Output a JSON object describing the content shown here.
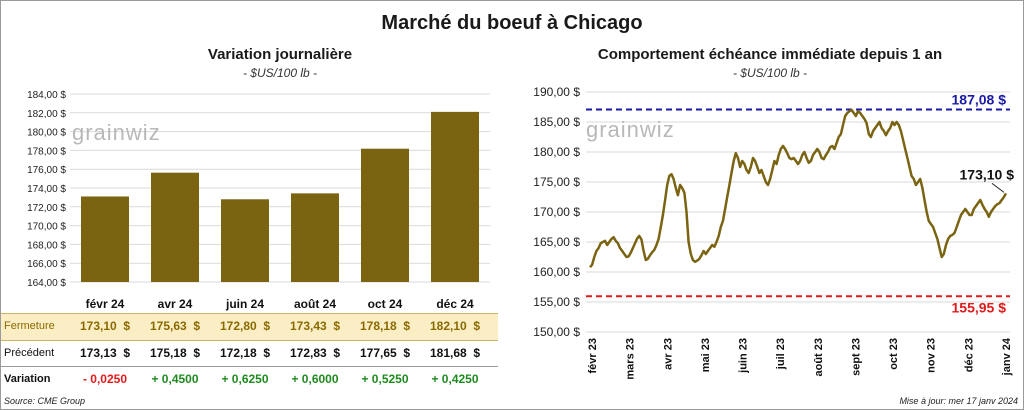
{
  "title": "Marché du boeuf à Chicago",
  "left_chart": {
    "title": "Variation  journalière",
    "subtitle": "- $US/100 lb -",
    "watermark": "grainwiz"
  },
  "right_chart": {
    "title": "Comportement  échéance immédiate depuis 1 an",
    "subtitle": "- $US/100 lb -",
    "watermark": "grainwiz",
    "upper_line_label": "187,08 $",
    "lower_line_label": "155,95 $",
    "last_label": "173,10 $"
  },
  "table": {
    "rows": [
      {
        "label": "Fermeture",
        "values": [
          "173,10  $",
          "175,63  $",
          "172,80  $",
          "173,43  $",
          "178,18  $",
          "182,10  $"
        ]
      },
      {
        "label": "Précédent",
        "values": [
          "173,13  $",
          "175,18  $",
          "172,18  $",
          "172,83  $",
          "177,65  $",
          "181,68  $"
        ]
      },
      {
        "label": "Variation",
        "values": [
          "- 0,0250",
          "+ 0,4500",
          "+ 0,6250",
          "+ 0,6000",
          "+ 0,5250",
          "+ 0,4250"
        ]
      }
    ]
  },
  "footer": {
    "source": "Source: CME Group",
    "updated": "Mise à jour: mer 17 janv 2024"
  },
  "colors": {
    "bar": "#7a6412",
    "line": "#7a6412",
    "upper_dash": "#1a1aa8",
    "lower_dash": "#e01b1b",
    "highlight_row": "#fbeec4",
    "negative": "#e01b1b",
    "positive": "#1f8a1f"
  },
  "chart_data": [
    {
      "type": "bar",
      "categories": [
        "févr 24",
        "avr 24",
        "juin 24",
        "août 24",
        "oct 24",
        "déc 24"
      ],
      "values": [
        173.1,
        175.63,
        172.8,
        173.43,
        178.18,
        182.1
      ],
      "title": "Variation  journalière",
      "subtitle": "- $US/100 lb -",
      "ylim": [
        164,
        184
      ],
      "yticks": [
        "164,00 $",
        "166,00 $",
        "168,00 $",
        "170,00 $",
        "172,00 $",
        "174,00 $",
        "176,00 $",
        "178,00 $",
        "180,00 $",
        "182,00 $",
        "184,00 $"
      ],
      "grid": true
    },
    {
      "type": "line",
      "title": "Comportement  échéance immédiate depuis 1 an",
      "subtitle": "- $US/100 lb -",
      "x_start": "févr 23",
      "x_end": "janv 24",
      "xticks": [
        "févr 23",
        "mars 23",
        "avr 23",
        "mai 23",
        "juin 23",
        "juil 23",
        "août 23",
        "sept 23",
        "oct 23",
        "nov 23",
        "déc 23",
        "janv 24"
      ],
      "ylim": [
        150,
        190
      ],
      "yticks": [
        "150,00 $",
        "155,00 $",
        "160,00 $",
        "165,00 $",
        "170,00 $",
        "175,00 $",
        "180,00 $",
        "185,00 $",
        "190,00 $"
      ],
      "grid": true,
      "reference_lines": [
        {
          "value": 187.08,
          "label": "187,08 $",
          "style": "dashed"
        },
        {
          "value": 155.95,
          "label": "155,95 $",
          "style": "dashed"
        }
      ],
      "values": [
        160.8,
        161.2,
        162.5,
        163.5,
        164.0,
        164.8,
        165.0,
        165.2,
        164.5,
        165.0,
        165.5,
        165.8,
        165.2,
        164.8,
        164.0,
        163.5,
        163.0,
        162.5,
        162.6,
        163.2,
        164.0,
        164.8,
        165.6,
        166.0,
        165.4,
        163.5,
        162.0,
        162.2,
        162.8,
        163.3,
        163.7,
        164.5,
        165.5,
        167.5,
        169.5,
        172.0,
        174.5,
        176.0,
        176.3,
        175.5,
        174.0,
        172.8,
        174.5,
        174.0,
        173.2,
        170.0,
        165.0,
        163.0,
        162.0,
        161.7,
        161.9,
        162.2,
        162.8,
        163.5,
        163.0,
        163.5,
        164.0,
        164.5,
        164.2,
        165.0,
        166.0,
        167.5,
        168.5,
        170.5,
        172.5,
        174.5,
        176.5,
        178.5,
        179.8,
        179.0,
        177.5,
        178.5,
        178.0,
        177.0,
        176.5,
        177.5,
        179.0,
        178.5,
        177.5,
        176.5,
        177.0,
        176.0,
        175.0,
        174.5,
        175.5,
        177.0,
        178.5,
        178.0,
        179.5,
        180.5,
        181.0,
        180.5,
        179.8,
        179.0,
        178.8,
        179.0,
        178.5,
        178.0,
        178.5,
        179.5,
        180.0,
        179.0,
        178.2,
        178.5,
        179.5,
        180.0,
        180.5,
        180.0,
        179.0,
        178.8,
        179.5,
        180.0,
        180.8,
        181.0,
        180.5,
        181.5,
        182.5,
        183.0,
        184.5,
        186.0,
        186.5,
        186.8,
        187.0,
        186.5,
        186.0,
        186.8,
        186.5,
        186.0,
        185.5,
        184.8,
        183.0,
        182.5,
        183.5,
        184.0,
        184.5,
        185.0,
        184.0,
        183.5,
        182.8,
        183.5,
        184.0,
        185.0,
        184.5,
        185.0,
        184.5,
        183.5,
        182.0,
        180.5,
        179.0,
        177.5,
        176.0,
        175.5,
        174.5,
        175.0,
        175.5,
        174.0,
        172.0,
        170.0,
        168.5,
        168.0,
        167.5,
        166.5,
        165.5,
        164.0,
        162.5,
        163.0,
        164.5,
        165.5,
        166.0,
        166.2,
        166.5,
        167.5,
        168.5,
        169.5,
        170.0,
        170.5,
        170.0,
        169.5,
        169.5,
        170.5,
        171.0,
        171.5,
        172.0,
        171.2,
        170.5,
        170.0,
        169.2,
        170.0,
        170.5,
        171.0,
        171.3,
        171.5,
        172.0,
        172.5,
        173.1
      ],
      "last_value": 173.1,
      "last_label": "173,10 $"
    }
  ]
}
